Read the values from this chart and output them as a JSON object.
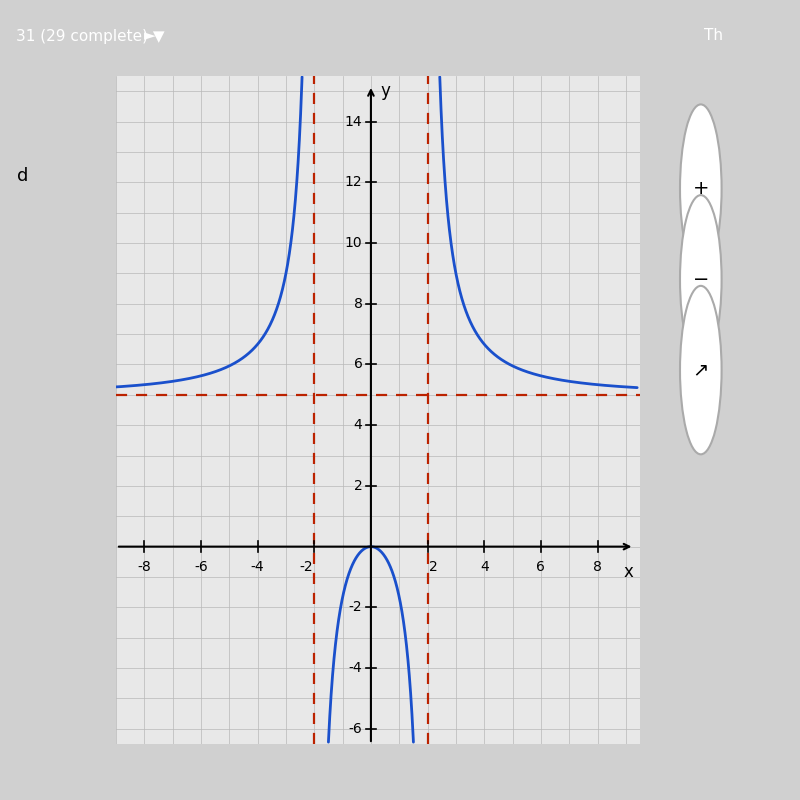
{
  "title": "",
  "xlabel": "x",
  "ylabel": "y",
  "xlim": [
    -9,
    9.5
  ],
  "ylim": [
    -6.5,
    15.5
  ],
  "xticks": [
    -8,
    -6,
    -4,
    -2,
    2,
    4,
    6,
    8
  ],
  "yticks": [
    -6,
    -4,
    -2,
    2,
    4,
    6,
    8,
    10,
    12,
    14
  ],
  "vertical_asymptotes": [
    -2,
    2
  ],
  "horizontal_asymptote": 5,
  "asymptote_color": "#bb2200",
  "curve_color": "#1a50cc",
  "graph_bg": "#e8e8e8",
  "outer_bg": "#d0d0d0",
  "header_bg": "#5b9aa0",
  "white_panel_bg": "#ffffff",
  "curve_linewidth": 2.0,
  "asymptote_linewidth": 1.6,
  "grid_color": "#b8b8b8",
  "axis_color": "#000000",
  "tick_fontsize": 10,
  "label_fontsize": 12
}
